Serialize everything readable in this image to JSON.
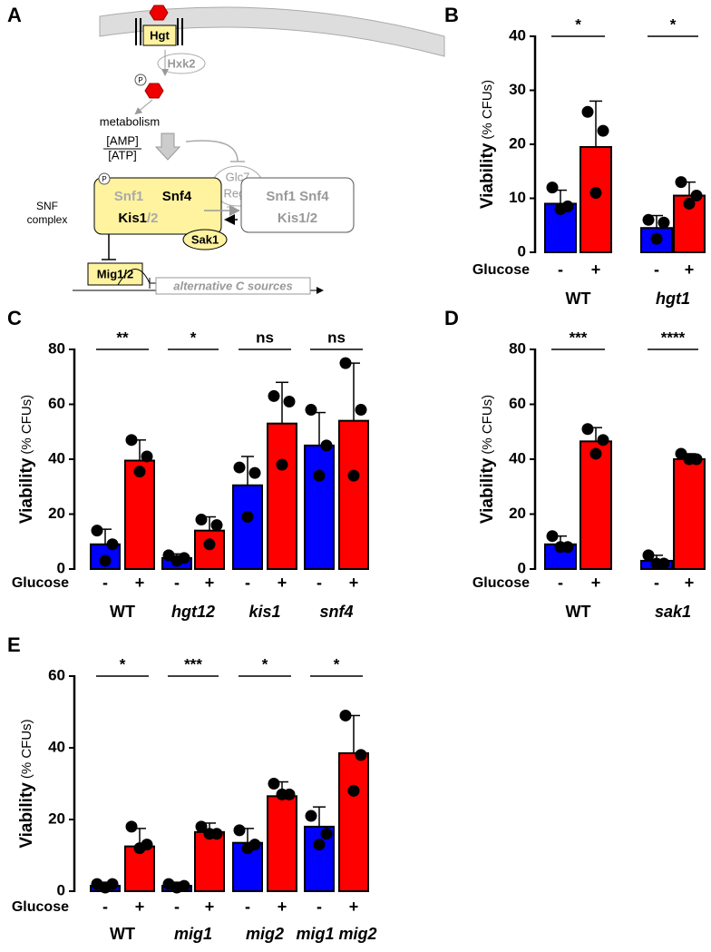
{
  "diagram": {
    "panel": "A",
    "hgt": "Hgt",
    "hxk2": "Hxk2",
    "phos": "P",
    "metabolism": "metabolism",
    "amp": "[AMP]",
    "atp": "[ATP]",
    "glc7": "Glc7",
    "reg1": "Reg1",
    "snf_complex": [
      "SNF",
      "complex"
    ],
    "phos2": "P",
    "snf1": "Snf1",
    "snf4": "Snf4",
    "kis1": "Kis1",
    "kis_suffix": "/2",
    "inactive_top": "Snf1 Snf4",
    "inactive_bottom": "Kis1/2",
    "sak1": "Sak1",
    "mig": "Mig1/2",
    "gene": "alternative C sources"
  },
  "chart_data": [
    {
      "type": "bar",
      "panel": "B",
      "ylabel": "Viability",
      "ylabel_unit": "(% CFUs)",
      "row_label": "Glucose",
      "categories": [
        "-",
        "+",
        "-",
        "+"
      ],
      "groups": [
        "WT",
        "hgt1"
      ],
      "colors": [
        "#0000ff",
        "#ff0000",
        "#0000ff",
        "#ff0000"
      ],
      "values": [
        9,
        19.5,
        4.5,
        10.5
      ],
      "errors": [
        2.5,
        8.5,
        2.3,
        2.5
      ],
      "points": [
        [
          12,
          8.5,
          8
        ],
        [
          26,
          22.5,
          11
        ],
        [
          6,
          5.5,
          2.5
        ],
        [
          13,
          10.5,
          9
        ]
      ],
      "significance": [
        "*",
        "*"
      ],
      "ylim": [
        0,
        40
      ],
      "yticks": [
        0,
        10,
        20,
        30,
        40
      ]
    },
    {
      "type": "bar",
      "panel": "C",
      "ylabel": "Viability",
      "ylabel_unit": "(% CFUs)",
      "row_label": "Glucose",
      "categories": [
        "-",
        "+",
        "-",
        "+",
        "-",
        "+",
        "-",
        "+"
      ],
      "groups": [
        "WT",
        "hgt12",
        "kis1",
        "snf4"
      ],
      "colors": [
        "#0000ff",
        "#ff0000",
        "#0000ff",
        "#ff0000",
        "#0000ff",
        "#ff0000",
        "#0000ff",
        "#ff0000"
      ],
      "values": [
        9,
        39.5,
        4,
        14,
        30.5,
        53,
        45,
        54
      ],
      "errors": [
        5.5,
        7.5,
        1.5,
        5,
        10.5,
        15,
        12,
        21
      ],
      "points": [
        [
          14,
          9,
          3
        ],
        [
          47,
          41,
          35.5
        ],
        [
          5,
          4,
          3
        ],
        [
          18,
          16,
          9
        ],
        [
          37,
          35,
          19
        ],
        [
          63,
          61,
          38
        ],
        [
          58,
          45,
          34
        ],
        [
          75,
          58,
          34
        ]
      ],
      "significance": [
        "**",
        "*",
        "ns",
        "ns"
      ],
      "ylim": [
        0,
        80
      ],
      "yticks": [
        0,
        20,
        40,
        60,
        80
      ]
    },
    {
      "type": "bar",
      "panel": "D",
      "ylabel": "Viability",
      "ylabel_unit": "(% CFUs)",
      "row_label": "Glucose",
      "categories": [
        "-",
        "+",
        "-",
        "+"
      ],
      "groups": [
        "WT",
        "sak1"
      ],
      "colors": [
        "#0000ff",
        "#ff0000",
        "#0000ff",
        "#ff0000"
      ],
      "values": [
        9,
        46.5,
        3,
        40
      ],
      "errors": [
        3,
        5,
        2,
        2
      ],
      "points": [
        [
          12,
          8,
          8
        ],
        [
          51,
          47,
          42
        ],
        [
          5,
          2,
          2
        ],
        [
          42,
          40,
          40
        ]
      ],
      "significance": [
        "***",
        "****"
      ],
      "ylim": [
        0,
        80
      ],
      "yticks": [
        0,
        20,
        40,
        60,
        80
      ]
    },
    {
      "type": "bar",
      "panel": "E",
      "ylabel": "Viability",
      "ylabel_unit": "(% CFUs)",
      "row_label": "Glucose",
      "categories": [
        "-",
        "+",
        "-",
        "+",
        "-",
        "+",
        "-",
        "+"
      ],
      "groups": [
        "WT",
        "mig1",
        "mig2",
        "mig1 mig2"
      ],
      "colors": [
        "#0000ff",
        "#ff0000",
        "#0000ff",
        "#ff0000",
        "#0000ff",
        "#ff0000",
        "#0000ff",
        "#ff0000"
      ],
      "values": [
        1.5,
        12.5,
        1.5,
        16.5,
        13.5,
        26.5,
        18,
        38.5
      ],
      "errors": [
        1,
        5,
        1,
        2.5,
        4,
        4,
        5.5,
        10.5
      ],
      "points": [
        [
          2,
          2,
          1
        ],
        [
          18,
          13,
          12
        ],
        [
          2,
          1.5,
          1
        ],
        [
          18,
          16,
          16
        ],
        [
          17,
          13,
          12
        ],
        [
          30,
          27,
          27
        ],
        [
          21,
          16,
          13
        ],
        [
          49,
          38,
          28
        ]
      ],
      "significance": [
        "*",
        "***",
        "*",
        "*"
      ],
      "ylim": [
        0,
        60
      ],
      "yticks": [
        0,
        20,
        40,
        60
      ]
    }
  ]
}
